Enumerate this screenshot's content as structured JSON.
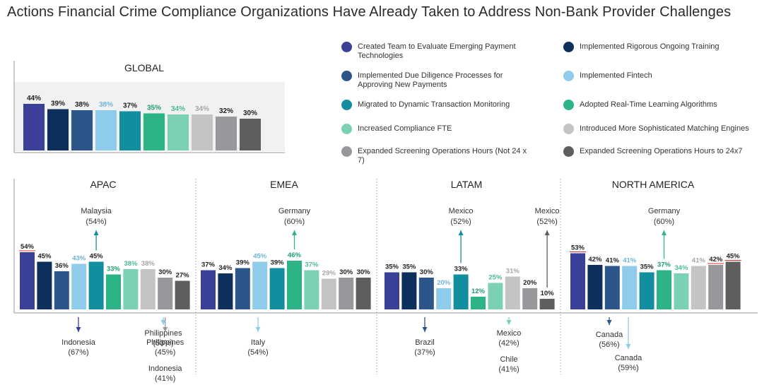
{
  "title": "Actions Financial Crime Compliance Organizations Have Already Taken to Address Non-Bank Provider Challenges",
  "legend": [
    {
      "label": "Created Team to Evaluate Emerging Payment Technologies",
      "color": "#3a3f97"
    },
    {
      "label": "Implemented Rigorous Ongoing Training",
      "color": "#0d2f5c"
    },
    {
      "label": "Implemented Due Diligence Processes for Approving New Payments",
      "color": "#2c5589"
    },
    {
      "label": "Implemented Fintech",
      "color": "#8fcbea"
    },
    {
      "label": "Migrated to Dynamic Transaction Monitoring",
      "color": "#128e9e"
    },
    {
      "label": "Adopted Real-Time Learning Algorithms",
      "color": "#2cb487"
    },
    {
      "label": "Increased Compliance FTE",
      "color": "#7ad1b6"
    },
    {
      "label": "Introduced More Sophisticated Matching Engines",
      "color": "#c4c4c4"
    },
    {
      "label": "Expanded Screening Operations Hours (Not 24 x 7)",
      "color": "#97989b"
    },
    {
      "label": "Expanded Screening Operations Hours to 24x7",
      "color": "#5e5e5e"
    }
  ],
  "chart_data": [
    {
      "type": "bar",
      "title": "GLOBAL",
      "values": [
        44,
        39,
        38,
        38,
        37,
        35,
        34,
        34,
        32,
        30
      ],
      "labels": [
        "44%",
        "39%",
        "38%",
        "38%",
        "37%",
        "35%",
        "34%",
        "34%",
        "32%",
        "30%"
      ]
    },
    {
      "type": "bar",
      "title": "APAC",
      "values": [
        54,
        45,
        36,
        43,
        45,
        33,
        38,
        38,
        30,
        27
      ],
      "labels": [
        "54%",
        "45%",
        "36%",
        "43%",
        "45%",
        "33%",
        "38%",
        "38%",
        "30%",
        "27%"
      ],
      "annotations": [
        {
          "text": [
            "Malaysia",
            "(54%)"
          ],
          "direction": "up",
          "bar": 4
        },
        {
          "text": [
            "Indonesia",
            "(67%)"
          ],
          "direction": "down",
          "bar": 0
        },
        {
          "text": [
            "Philippines",
            "(53%)"
          ],
          "direction": "down",
          "bar": 3
        },
        {
          "text": [
            "Philippines",
            "(45%)",
            "Indonesia",
            "(41%)"
          ],
          "direction": "down",
          "bar": 8
        }
      ]
    },
    {
      "type": "bar",
      "title": "EMEA",
      "values": [
        37,
        34,
        39,
        45,
        39,
        46,
        37,
        29,
        30,
        30
      ],
      "labels": [
        "37%",
        "34%",
        "39%",
        "45%",
        "39%",
        "46%",
        "37%",
        "29%",
        "30%",
        "30%"
      ],
      "annotations": [
        {
          "text": [
            "Germany",
            "(60%)"
          ],
          "direction": "up",
          "bar": 5
        },
        {
          "text": [
            "Italy",
            "(54%)"
          ],
          "direction": "down",
          "bar": 3
        }
      ]
    },
    {
      "type": "bar",
      "title": "LATAM",
      "values": [
        35,
        35,
        30,
        20,
        33,
        12,
        25,
        31,
        20,
        10
      ],
      "labels": [
        "35%",
        "35%",
        "30%",
        "20%",
        "33%",
        "12%",
        "25%",
        "31%",
        "20%",
        "10%"
      ],
      "annotations": [
        {
          "text": [
            "Mexico",
            "(52%)"
          ],
          "direction": "up",
          "bar": 4
        },
        {
          "text": [
            "Mexico",
            "(52%)"
          ],
          "direction": "up",
          "bar": 9
        },
        {
          "text": [
            "Brazil",
            "(37%)"
          ],
          "direction": "down",
          "bar": 2
        },
        {
          "text": [
            "Mexico",
            "(42%)",
            "Chile",
            "(41%)"
          ],
          "direction": "down",
          "bar": 6
        }
      ]
    },
    {
      "type": "bar",
      "title": "NORTH AMERICA",
      "values": [
        53,
        42,
        41,
        41,
        35,
        37,
        34,
        41,
        42,
        45
      ],
      "labels": [
        "53%",
        "42%",
        "41%",
        "41%",
        "35%",
        "37%",
        "34%",
        "41%",
        "42%",
        "45%"
      ],
      "annotations": [
        {
          "text": [
            "Germany",
            "(60%)"
          ],
          "direction": "up",
          "bar": 5
        },
        {
          "text": [
            "Canada",
            "(56%)"
          ],
          "direction": "down",
          "bar": 2
        },
        {
          "text": [
            "Canada",
            "(59%)"
          ],
          "direction": "down",
          "bar": 3
        }
      ]
    }
  ]
}
